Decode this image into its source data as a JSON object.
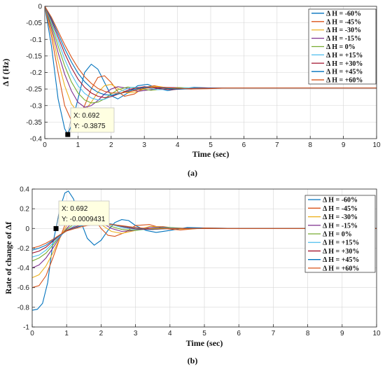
{
  "colors": [
    "#0072BD",
    "#D95319",
    "#EDB120",
    "#7E2F8E",
    "#77AC30",
    "#4DBEEE",
    "#A2142F",
    "#0072BD",
    "#D95319"
  ],
  "chart_data": [
    {
      "type": "line",
      "caption": "(a)",
      "xlabel": "Time (sec)",
      "ylabel": "Δ f (Hz)",
      "xlim": [
        0,
        10
      ],
      "ylim": [
        -0.4,
        0
      ],
      "xticks": [
        0,
        1,
        2,
        3,
        4,
        5,
        6,
        7,
        8,
        9,
        10
      ],
      "yticks": [
        0,
        -0.05,
        -0.1,
        -0.15,
        -0.2,
        -0.25,
        -0.3,
        -0.35,
        -0.4
      ],
      "ytick_labels": [
        "0",
        "-0.05",
        "-0.1",
        "-0.15",
        "-0.2",
        "-0.25",
        "-0.3",
        "-0.35",
        "-0.4"
      ],
      "grid": true,
      "legend_position": "top-right",
      "series": [
        {
          "name": "Δ H = -60%",
          "x": [
            0,
            0.2,
            0.4,
            0.6,
            0.692,
            0.8,
            1.0,
            1.2,
            1.4,
            1.6,
            1.8,
            2.0,
            2.2,
            2.5,
            2.8,
            3.1,
            3.4,
            3.7,
            4.0,
            4.5,
            5,
            6,
            7,
            8,
            9,
            10
          ],
          "y": [
            0,
            -0.12,
            -0.28,
            -0.37,
            -0.3875,
            -0.36,
            -0.28,
            -0.2,
            -0.175,
            -0.19,
            -0.23,
            -0.27,
            -0.28,
            -0.262,
            -0.24,
            -0.236,
            -0.248,
            -0.255,
            -0.25,
            -0.245,
            -0.247,
            -0.247,
            -0.247,
            -0.247,
            -0.247,
            -0.247
          ]
        },
        {
          "name": "Δ H = -45%",
          "x": [
            0,
            0.2,
            0.4,
            0.6,
            0.8,
            1.0,
            1.2,
            1.4,
            1.6,
            1.8,
            2.0,
            2.2,
            2.4,
            2.7,
            3.0,
            3.3,
            3.6,
            4.0,
            4.5,
            5,
            6,
            7,
            8,
            9,
            10
          ],
          "y": [
            0,
            -0.09,
            -0.2,
            -0.3,
            -0.345,
            -0.34,
            -0.3,
            -0.25,
            -0.215,
            -0.21,
            -0.23,
            -0.258,
            -0.272,
            -0.265,
            -0.245,
            -0.24,
            -0.246,
            -0.25,
            -0.247,
            -0.247,
            -0.247,
            -0.247,
            -0.247,
            -0.247,
            -0.247
          ]
        },
        {
          "name": "Δ H = -30%",
          "x": [
            0,
            0.2,
            0.4,
            0.6,
            0.8,
            1.0,
            1.2,
            1.4,
            1.6,
            1.8,
            2.0,
            2.2,
            2.5,
            2.8,
            3.1,
            3.4,
            3.8,
            4.2,
            5,
            6,
            7,
            8,
            9,
            10
          ],
          "y": [
            0,
            -0.075,
            -0.165,
            -0.24,
            -0.295,
            -0.32,
            -0.315,
            -0.29,
            -0.26,
            -0.24,
            -0.236,
            -0.248,
            -0.262,
            -0.258,
            -0.245,
            -0.242,
            -0.248,
            -0.249,
            -0.247,
            -0.247,
            -0.247,
            -0.247,
            -0.247,
            -0.247
          ]
        },
        {
          "name": "Δ H = -15%",
          "x": [
            0,
            0.2,
            0.4,
            0.6,
            0.8,
            1.0,
            1.2,
            1.4,
            1.6,
            1.8,
            2.0,
            2.2,
            2.5,
            2.8,
            3.2,
            3.6,
            4.0,
            4.5,
            5,
            6,
            7,
            8,
            9,
            10
          ],
          "y": [
            0,
            -0.065,
            -0.14,
            -0.205,
            -0.255,
            -0.29,
            -0.305,
            -0.3,
            -0.285,
            -0.265,
            -0.25,
            -0.243,
            -0.248,
            -0.257,
            -0.252,
            -0.245,
            -0.246,
            -0.248,
            -0.247,
            -0.247,
            -0.247,
            -0.247,
            -0.247,
            -0.247
          ]
        },
        {
          "name": "Δ H = 0%",
          "x": [
            0,
            0.2,
            0.4,
            0.6,
            0.8,
            1.0,
            1.2,
            1.4,
            1.6,
            1.8,
            2.0,
            2.2,
            2.5,
            2.8,
            3.2,
            3.6,
            4.0,
            4.5,
            5,
            6,
            7,
            8,
            9,
            10
          ],
          "y": [
            0,
            -0.055,
            -0.12,
            -0.18,
            -0.228,
            -0.262,
            -0.283,
            -0.292,
            -0.29,
            -0.28,
            -0.265,
            -0.252,
            -0.244,
            -0.248,
            -0.254,
            -0.25,
            -0.246,
            -0.247,
            -0.247,
            -0.247,
            -0.247,
            -0.247,
            -0.247,
            -0.247
          ]
        },
        {
          "name": "Δ H = +15%",
          "x": [
            0,
            0.2,
            0.4,
            0.6,
            0.8,
            1.0,
            1.2,
            1.4,
            1.6,
            1.8,
            2.0,
            2.3,
            2.6,
            3.0,
            3.4,
            3.8,
            4.2,
            4.7,
            5.2,
            6,
            7,
            8,
            9,
            10
          ],
          "y": [
            0,
            -0.048,
            -0.105,
            -0.16,
            -0.205,
            -0.24,
            -0.263,
            -0.277,
            -0.283,
            -0.281,
            -0.272,
            -0.256,
            -0.245,
            -0.245,
            -0.252,
            -0.251,
            -0.247,
            -0.247,
            -0.247,
            -0.247,
            -0.247,
            -0.247,
            -0.247,
            -0.247
          ]
        },
        {
          "name": "Δ H = +30%",
          "x": [
            0,
            0.2,
            0.4,
            0.6,
            0.8,
            1.0,
            1.2,
            1.4,
            1.6,
            1.8,
            2.0,
            2.3,
            2.6,
            3.0,
            3.4,
            3.8,
            4.3,
            4.8,
            5.3,
            6,
            7,
            8,
            9,
            10
          ],
          "y": [
            0,
            -0.042,
            -0.093,
            -0.142,
            -0.185,
            -0.22,
            -0.245,
            -0.262,
            -0.272,
            -0.276,
            -0.273,
            -0.262,
            -0.25,
            -0.243,
            -0.248,
            -0.252,
            -0.249,
            -0.247,
            -0.247,
            -0.247,
            -0.247,
            -0.247,
            -0.247,
            -0.247
          ]
        },
        {
          "name": "Δ H = +45%",
          "x": [
            0,
            0.2,
            0.4,
            0.6,
            0.8,
            1.0,
            1.2,
            1.4,
            1.6,
            1.8,
            2.0,
            2.3,
            2.6,
            3.0,
            3.4,
            3.9,
            4.4,
            4.9,
            5.5,
            6,
            7,
            8,
            9,
            10
          ],
          "y": [
            0,
            -0.037,
            -0.083,
            -0.128,
            -0.168,
            -0.202,
            -0.228,
            -0.247,
            -0.26,
            -0.267,
            -0.269,
            -0.263,
            -0.254,
            -0.245,
            -0.245,
            -0.25,
            -0.25,
            -0.248,
            -0.247,
            -0.247,
            -0.247,
            -0.247,
            -0.247,
            -0.247
          ]
        },
        {
          "name": "Δ H = +60%",
          "x": [
            0,
            0.2,
            0.4,
            0.6,
            0.8,
            1.0,
            1.2,
            1.4,
            1.6,
            1.8,
            2.0,
            2.3,
            2.6,
            3.0,
            3.4,
            3.9,
            4.4,
            4.9,
            5.5,
            6,
            7,
            8,
            9,
            10
          ],
          "y": [
            0,
            -0.033,
            -0.075,
            -0.116,
            -0.153,
            -0.186,
            -0.213,
            -0.233,
            -0.248,
            -0.257,
            -0.262,
            -0.262,
            -0.257,
            -0.248,
            -0.244,
            -0.247,
            -0.25,
            -0.249,
            -0.247,
            -0.247,
            -0.247,
            -0.247,
            -0.247,
            -0.247
          ]
        }
      ],
      "datatip": {
        "x": 0.692,
        "y": -0.3875,
        "xtext": "X: 0.692",
        "ytext": "Y: -0.3875"
      }
    },
    {
      "type": "line",
      "caption": "(b)",
      "xlabel": "Time (sec)",
      "ylabel": "Rate of change of Δf",
      "xlim": [
        0,
        10
      ],
      "ylim": [
        -1,
        0.4
      ],
      "xticks": [
        0,
        1,
        2,
        3,
        4,
        5,
        6,
        7,
        8,
        9,
        10
      ],
      "yticks": [
        0.4,
        0.2,
        0,
        -0.2,
        -0.4,
        -0.6,
        -0.8,
        -1
      ],
      "ytick_labels": [
        "0.4",
        "0.2",
        "0",
        "-0.2",
        "-0.4",
        "-0.6",
        "-0.8",
        "-1"
      ],
      "grid": true,
      "legend_position": "right",
      "series": [
        {
          "name": "Δ H = -60%",
          "x": [
            0,
            0.15,
            0.3,
            0.45,
            0.6,
            0.692,
            0.8,
            0.95,
            1.05,
            1.2,
            1.4,
            1.6,
            1.8,
            2.0,
            2.2,
            2.4,
            2.6,
            2.8,
            3.0,
            3.3,
            3.6,
            4.0,
            4.5,
            5,
            6,
            7,
            8,
            9,
            10
          ],
          "y": [
            -0.83,
            -0.82,
            -0.76,
            -0.55,
            -0.15,
            -0.0009,
            0.2,
            0.36,
            0.38,
            0.3,
            0.08,
            -0.1,
            -0.17,
            -0.12,
            -0.02,
            0.06,
            0.09,
            0.08,
            0.03,
            -0.02,
            -0.04,
            -0.02,
            0.01,
            0.005,
            0,
            0,
            0,
            0,
            0
          ]
        },
        {
          "name": "Δ H = -45%",
          "x": [
            0,
            0.2,
            0.4,
            0.6,
            0.8,
            1.0,
            1.2,
            1.4,
            1.6,
            1.8,
            2.0,
            2.2,
            2.4,
            2.7,
            3.0,
            3.4,
            3.8,
            4.3,
            5,
            6,
            7,
            8,
            9,
            10
          ],
          "y": [
            -0.6,
            -0.58,
            -0.48,
            -0.3,
            -0.1,
            0.08,
            0.2,
            0.24,
            0.2,
            0.1,
            0.0,
            -0.07,
            -0.08,
            -0.04,
            0.03,
            0.04,
            0.0,
            -0.015,
            0.005,
            0,
            0,
            0,
            0,
            0
          ]
        },
        {
          "name": "Δ H = -30%",
          "x": [
            0,
            0.2,
            0.4,
            0.6,
            0.8,
            1.0,
            1.2,
            1.4,
            1.6,
            1.8,
            2.0,
            2.3,
            2.6,
            3.0,
            3.4,
            3.8,
            4.3,
            5,
            6,
            7,
            8,
            9,
            10
          ],
          "y": [
            -0.5,
            -0.47,
            -0.38,
            -0.25,
            -0.1,
            0.03,
            0.12,
            0.17,
            0.16,
            0.11,
            0.04,
            -0.03,
            -0.05,
            -0.02,
            0.02,
            0.02,
            -0.005,
            0,
            0,
            0,
            0,
            0,
            0
          ]
        },
        {
          "name": "Δ H = -15%",
          "x": [
            0,
            0.2,
            0.4,
            0.6,
            0.8,
            1.0,
            1.2,
            1.4,
            1.6,
            1.8,
            2.0,
            2.3,
            2.6,
            3.0,
            3.4,
            3.8,
            4.3,
            5,
            6,
            7,
            8,
            9,
            10
          ],
          "y": [
            -0.4,
            -0.37,
            -0.3,
            -0.2,
            -0.09,
            0.0,
            0.07,
            0.11,
            0.12,
            0.1,
            0.06,
            0.0,
            -0.03,
            -0.02,
            0.01,
            0.015,
            0,
            0,
            0,
            0,
            0,
            0,
            0
          ]
        },
        {
          "name": "Δ H = 0%",
          "x": [
            0,
            0.2,
            0.4,
            0.6,
            0.8,
            1.0,
            1.2,
            1.4,
            1.6,
            1.8,
            2.0,
            2.3,
            2.6,
            3.0,
            3.5,
            4.0,
            4.5,
            5,
            6,
            7,
            8,
            9,
            10
          ],
          "y": [
            -0.33,
            -0.3,
            -0.25,
            -0.17,
            -0.08,
            -0.01,
            0.04,
            0.08,
            0.09,
            0.09,
            0.07,
            0.02,
            -0.01,
            -0.02,
            0.0,
            0.01,
            0,
            0,
            0,
            0,
            0,
            0,
            0
          ]
        },
        {
          "name": "Δ H = +15%",
          "x": [
            0,
            0.2,
            0.4,
            0.6,
            0.8,
            1.0,
            1.2,
            1.4,
            1.6,
            1.8,
            2.0,
            2.3,
            2.6,
            3.0,
            3.5,
            4.0,
            4.5,
            5,
            6,
            7,
            8,
            9,
            10
          ],
          "y": [
            -0.29,
            -0.27,
            -0.22,
            -0.15,
            -0.08,
            -0.02,
            0.02,
            0.05,
            0.07,
            0.075,
            0.07,
            0.04,
            0.01,
            -0.01,
            -0.01,
            0.005,
            0,
            0,
            0,
            0,
            0,
            0,
            0
          ]
        },
        {
          "name": "Δ H = +30%",
          "x": [
            0,
            0.2,
            0.4,
            0.6,
            0.8,
            1.0,
            1.2,
            1.4,
            1.6,
            1.8,
            2.0,
            2.3,
            2.6,
            3.0,
            3.5,
            4.0,
            4.5,
            5,
            6,
            7,
            8,
            9,
            10
          ],
          "y": [
            -0.25,
            -0.23,
            -0.19,
            -0.13,
            -0.07,
            -0.02,
            0.01,
            0.035,
            0.05,
            0.06,
            0.06,
            0.045,
            0.02,
            -0.005,
            -0.01,
            0,
            0,
            0,
            0,
            0,
            0,
            0,
            0
          ]
        },
        {
          "name": "Δ H = +45%",
          "x": [
            0,
            0.2,
            0.4,
            0.6,
            0.8,
            1.0,
            1.2,
            1.4,
            1.6,
            1.8,
            2.0,
            2.3,
            2.6,
            3.0,
            3.5,
            4.0,
            4.5,
            5,
            6,
            7,
            8,
            9,
            10
          ],
          "y": [
            -0.22,
            -0.2,
            -0.17,
            -0.12,
            -0.07,
            -0.025,
            0.0,
            0.025,
            0.04,
            0.05,
            0.05,
            0.045,
            0.025,
            0.005,
            -0.008,
            0,
            0,
            0,
            0,
            0,
            0,
            0,
            0
          ]
        },
        {
          "name": "Δ H = +60%",
          "x": [
            0,
            0.2,
            0.4,
            0.6,
            0.8,
            1.0,
            1.2,
            1.4,
            1.6,
            1.8,
            2.0,
            2.3,
            2.6,
            3.0,
            3.5,
            4.0,
            4.5,
            5,
            6,
            7,
            8,
            9,
            10
          ],
          "y": [
            -0.2,
            -0.18,
            -0.15,
            -0.11,
            -0.065,
            -0.025,
            -0.005,
            0.015,
            0.03,
            0.04,
            0.045,
            0.04,
            0.028,
            0.01,
            -0.005,
            0,
            0,
            0,
            0,
            0,
            0,
            0,
            0
          ]
        }
      ],
      "datatip": {
        "x": 0.692,
        "y": -0.0009431,
        "xtext": "X: 0.692",
        "ytext": "Y: -0.0009431"
      }
    }
  ]
}
